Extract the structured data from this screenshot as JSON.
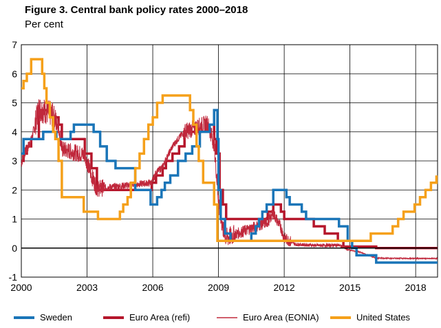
{
  "chart_data": {
    "type": "line",
    "title": "Figure 3. Central bank policy rates 2000–2018",
    "subtitle": "Per cent",
    "xlabel": "",
    "ylabel": "",
    "xlim": [
      2000,
      2019
    ],
    "ylim": [
      -1,
      7
    ],
    "x_ticks": [
      2000,
      2003,
      2006,
      2009,
      2012,
      2015,
      2018
    ],
    "y_ticks": [
      -1,
      0,
      1,
      2,
      3,
      4,
      5,
      6,
      7
    ],
    "grid": true,
    "legend_position": "bottom",
    "series": [
      {
        "name": "Sweden",
        "color": "#1a75b8",
        "style": "step",
        "x": [
          2000.0,
          2000.1,
          2000.2,
          2001.0,
          2001.6,
          2002.25,
          2002.4,
          2003.3,
          2003.6,
          2003.9,
          2004.3,
          2005.2,
          2005.9,
          2006.2,
          2006.4,
          2006.55,
          2006.8,
          2007.15,
          2007.5,
          2007.8,
          2008.15,
          2008.6,
          2008.8,
          2008.95,
          2009.0,
          2009.1,
          2009.3,
          2009.55,
          2010.5,
          2010.7,
          2010.85,
          2011.0,
          2011.2,
          2011.5,
          2012.1,
          2012.25,
          2012.8,
          2013.0,
          2014.5,
          2014.9,
          2015.1,
          2015.3,
          2016.2,
          2019.0
        ],
        "values": [
          3.25,
          3.75,
          3.75,
          4.0,
          3.75,
          4.0,
          4.25,
          4.0,
          3.5,
          3.0,
          2.75,
          2.0,
          1.5,
          1.75,
          2.0,
          2.25,
          2.5,
          3.0,
          3.25,
          3.5,
          4.0,
          4.25,
          4.75,
          3.75,
          2.0,
          1.0,
          0.5,
          0.25,
          0.5,
          0.75,
          1.0,
          1.25,
          1.5,
          2.0,
          1.75,
          1.5,
          1.25,
          1.0,
          0.75,
          0.25,
          0.0,
          -0.25,
          -0.5,
          -0.5
        ]
      },
      {
        "name": "Euro Area (refi)",
        "color": "#b5162b",
        "style": "step",
        "x": [
          2000.0,
          2000.1,
          2000.25,
          2000.45,
          2000.8,
          2001.4,
          2001.7,
          2001.85,
          2002.9,
          2003.2,
          2003.45,
          2005.95,
          2006.15,
          2006.45,
          2006.6,
          2006.9,
          2007.2,
          2007.45,
          2008.5,
          2008.8,
          2008.9,
          2009.05,
          2009.2,
          2009.35,
          2011.25,
          2011.5,
          2011.85,
          2012.0,
          2013.35,
          2013.85,
          2014.45,
          2014.7,
          2016.2,
          2019.0
        ],
        "values": [
          3.0,
          3.25,
          3.5,
          3.75,
          4.75,
          4.5,
          4.25,
          3.75,
          3.25,
          2.75,
          2.0,
          2.25,
          2.5,
          2.75,
          3.0,
          3.25,
          3.5,
          4.0,
          4.25,
          3.75,
          3.25,
          2.0,
          1.5,
          1.0,
          1.25,
          1.5,
          1.25,
          1.0,
          0.75,
          0.5,
          0.25,
          0.05,
          0.0,
          0.0
        ]
      },
      {
        "name": "Euro Area (EONIA)",
        "color": "#c0283c",
        "style": "noisy",
        "x": [
          2000.0,
          2000.1,
          2000.25,
          2000.45,
          2000.8,
          2001.4,
          2001.7,
          2001.85,
          2002.9,
          2003.2,
          2003.45,
          2005.95,
          2006.15,
          2006.45,
          2006.6,
          2006.9,
          2007.2,
          2007.45,
          2008.5,
          2008.8,
          2008.9,
          2009.05,
          2009.2,
          2009.35,
          2011.25,
          2011.5,
          2011.85,
          2012.0,
          2012.5,
          2013.5,
          2014.5,
          2014.9,
          2015.5,
          2016.2,
          2019.0
        ],
        "values": [
          2.9,
          3.2,
          3.4,
          3.7,
          4.8,
          4.6,
          4.2,
          3.4,
          3.2,
          2.5,
          2.05,
          2.25,
          2.6,
          2.8,
          3.05,
          3.5,
          3.8,
          4.0,
          4.3,
          3.6,
          2.6,
          1.3,
          0.7,
          0.35,
          0.9,
          1.2,
          0.7,
          0.35,
          0.13,
          0.09,
          0.1,
          -0.05,
          -0.15,
          -0.35,
          -0.36
        ]
      },
      {
        "name": "United States",
        "color": "#f5a01a",
        "style": "step",
        "x": [
          2000.0,
          2000.1,
          2000.25,
          2000.45,
          2000.95,
          2001.05,
          2001.15,
          2001.3,
          2001.45,
          2001.55,
          2001.7,
          2001.85,
          2002.85,
          2003.5,
          2004.5,
          2004.65,
          2004.85,
          2005.0,
          2005.2,
          2005.4,
          2005.6,
          2005.8,
          2006.0,
          2006.2,
          2006.45,
          2007.7,
          2007.85,
          2008.0,
          2008.1,
          2008.3,
          2008.8,
          2008.95,
          2015.95,
          2016.95,
          2017.2,
          2017.45,
          2017.95,
          2018.2,
          2018.45,
          2018.7,
          2018.95
        ],
        "values": [
          5.5,
          5.75,
          6.0,
          6.5,
          6.0,
          5.5,
          5.0,
          4.5,
          4.0,
          3.75,
          3.0,
          1.75,
          1.25,
          1.0,
          1.25,
          1.5,
          1.75,
          2.25,
          2.75,
          3.25,
          3.75,
          4.25,
          4.5,
          5.0,
          5.25,
          4.75,
          4.25,
          3.5,
          3.0,
          2.25,
          1.5,
          0.25,
          0.5,
          0.75,
          1.0,
          1.25,
          1.5,
          1.75,
          2.0,
          2.25,
          2.5
        ]
      }
    ],
    "legend": [
      "Sweden",
      "Euro Area (refi)",
      "Euro Area (EONIA)",
      "United States"
    ]
  }
}
